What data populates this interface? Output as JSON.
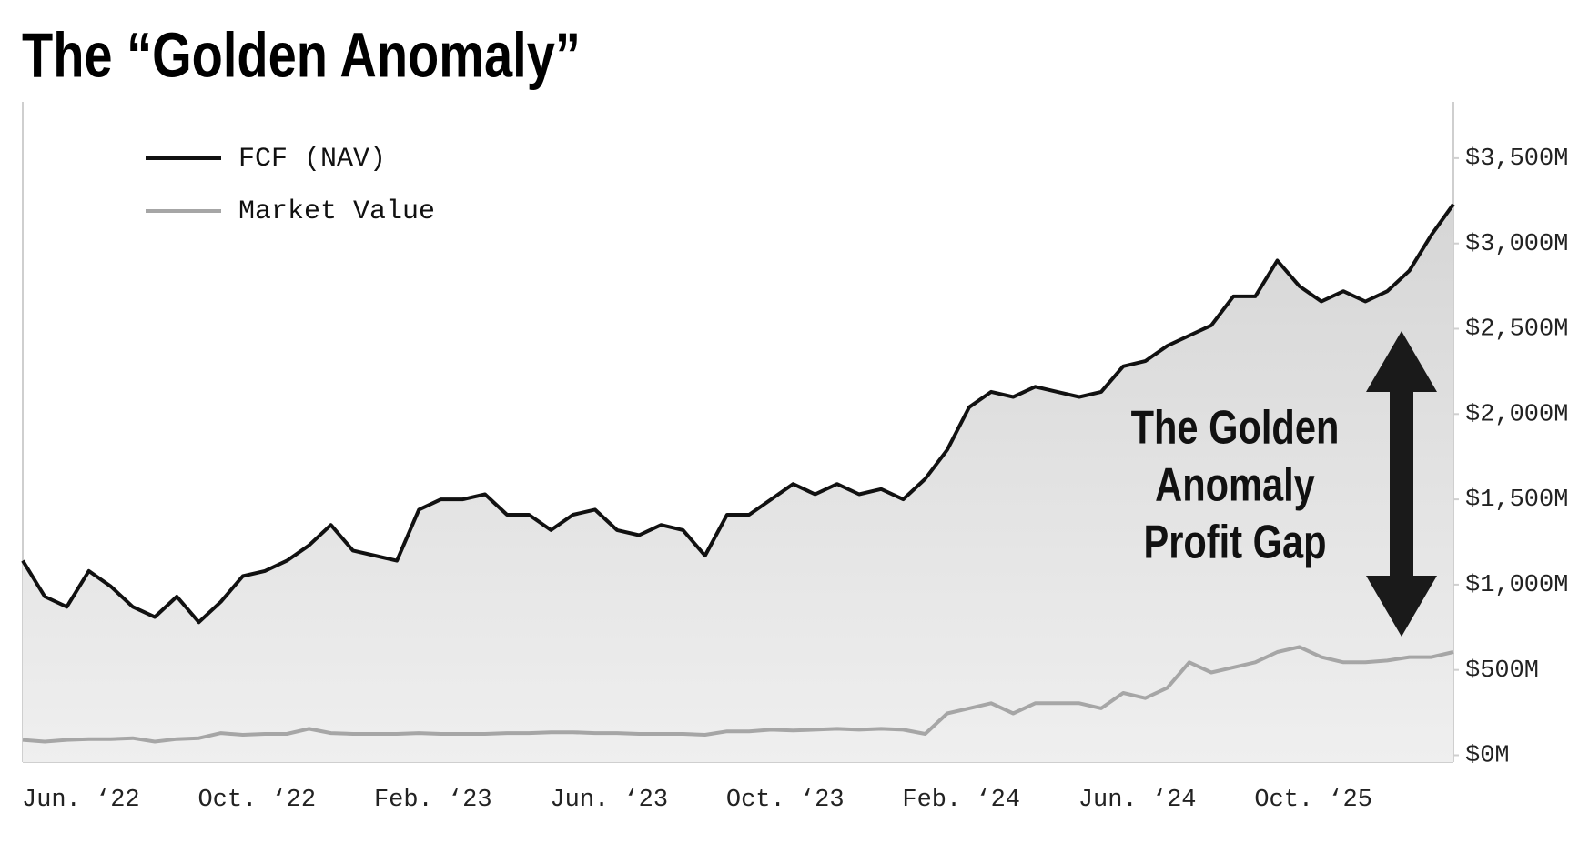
{
  "chart_data": {
    "type": "line",
    "title": "The “Golden Anomaly”",
    "annotation_lines": [
      "The Golden",
      "Anomaly",
      "Profit Gap"
    ],
    "categories": [
      "Jun. ‘22",
      null,
      null,
      null,
      null,
      null,
      null,
      null,
      "Oct. ‘22",
      null,
      null,
      null,
      null,
      null,
      null,
      null,
      "Feb. ‘23",
      null,
      null,
      null,
      null,
      null,
      null,
      null,
      "Jun. ‘23",
      null,
      null,
      null,
      null,
      null,
      null,
      null,
      "Oct. ‘23",
      null,
      null,
      null,
      null,
      null,
      null,
      null,
      "Feb. ‘24",
      null,
      null,
      null,
      null,
      null,
      null,
      null,
      "Jun. ‘24",
      null,
      null,
      null,
      null,
      null,
      null,
      null,
      "Oct. ‘25",
      null,
      null,
      null,
      null,
      null,
      null,
      null,
      null,
      null
    ],
    "series": [
      {
        "name": "FCF (NAV)",
        "color": "#111111",
        "values": [
          1140,
          930,
          870,
          1080,
          990,
          870,
          810,
          930,
          780,
          900,
          1050,
          1080,
          1140,
          1230,
          1350,
          1200,
          1170,
          1140,
          1440,
          1500,
          1500,
          1530,
          1410,
          1410,
          1320,
          1410,
          1440,
          1320,
          1290,
          1350,
          1320,
          1170,
          1410,
          1410,
          1500,
          1590,
          1530,
          1590,
          1530,
          1560,
          1500,
          1620,
          1790,
          2040,
          2130,
          2100,
          2160,
          2130,
          2100,
          2130,
          2280,
          2310,
          2400,
          2460,
          2520,
          2690,
          2690,
          2900,
          2750,
          2660,
          2720,
          2660,
          2720,
          2840,
          3050,
          3230
        ]
      },
      {
        "name": "Market Value",
        "color": "#a6a6a6",
        "values": [
          90,
          80,
          90,
          95,
          95,
          100,
          80,
          95,
          100,
          130,
          120,
          125,
          125,
          155,
          130,
          125,
          125,
          125,
          130,
          125,
          125,
          125,
          130,
          130,
          135,
          135,
          130,
          130,
          125,
          125,
          125,
          120,
          140,
          140,
          150,
          145,
          150,
          155,
          150,
          155,
          150,
          125,
          245,
          275,
          305,
          245,
          305,
          305,
          305,
          275,
          365,
          335,
          395,
          545,
          485,
          515,
          545,
          605,
          635,
          575,
          545,
          545,
          555,
          575,
          575,
          605
        ]
      }
    ],
    "fill_color": "#e2e2e2",
    "ylim": [
      -40,
      3830
    ],
    "yticks": [
      {
        "value": 0,
        "label": "$0M"
      },
      {
        "value": 500,
        "label": "$500M"
      },
      {
        "value": 1000,
        "label": "$1,000M"
      },
      {
        "value": 1500,
        "label": "$1,500M"
      },
      {
        "value": 2000,
        "label": "$2,000M"
      },
      {
        "value": 2500,
        "label": "$2,500M"
      },
      {
        "value": 3000,
        "label": "$3,000M"
      },
      {
        "value": 3500,
        "label": "$3,500M"
      }
    ],
    "grid": false,
    "legend": "upper left"
  }
}
